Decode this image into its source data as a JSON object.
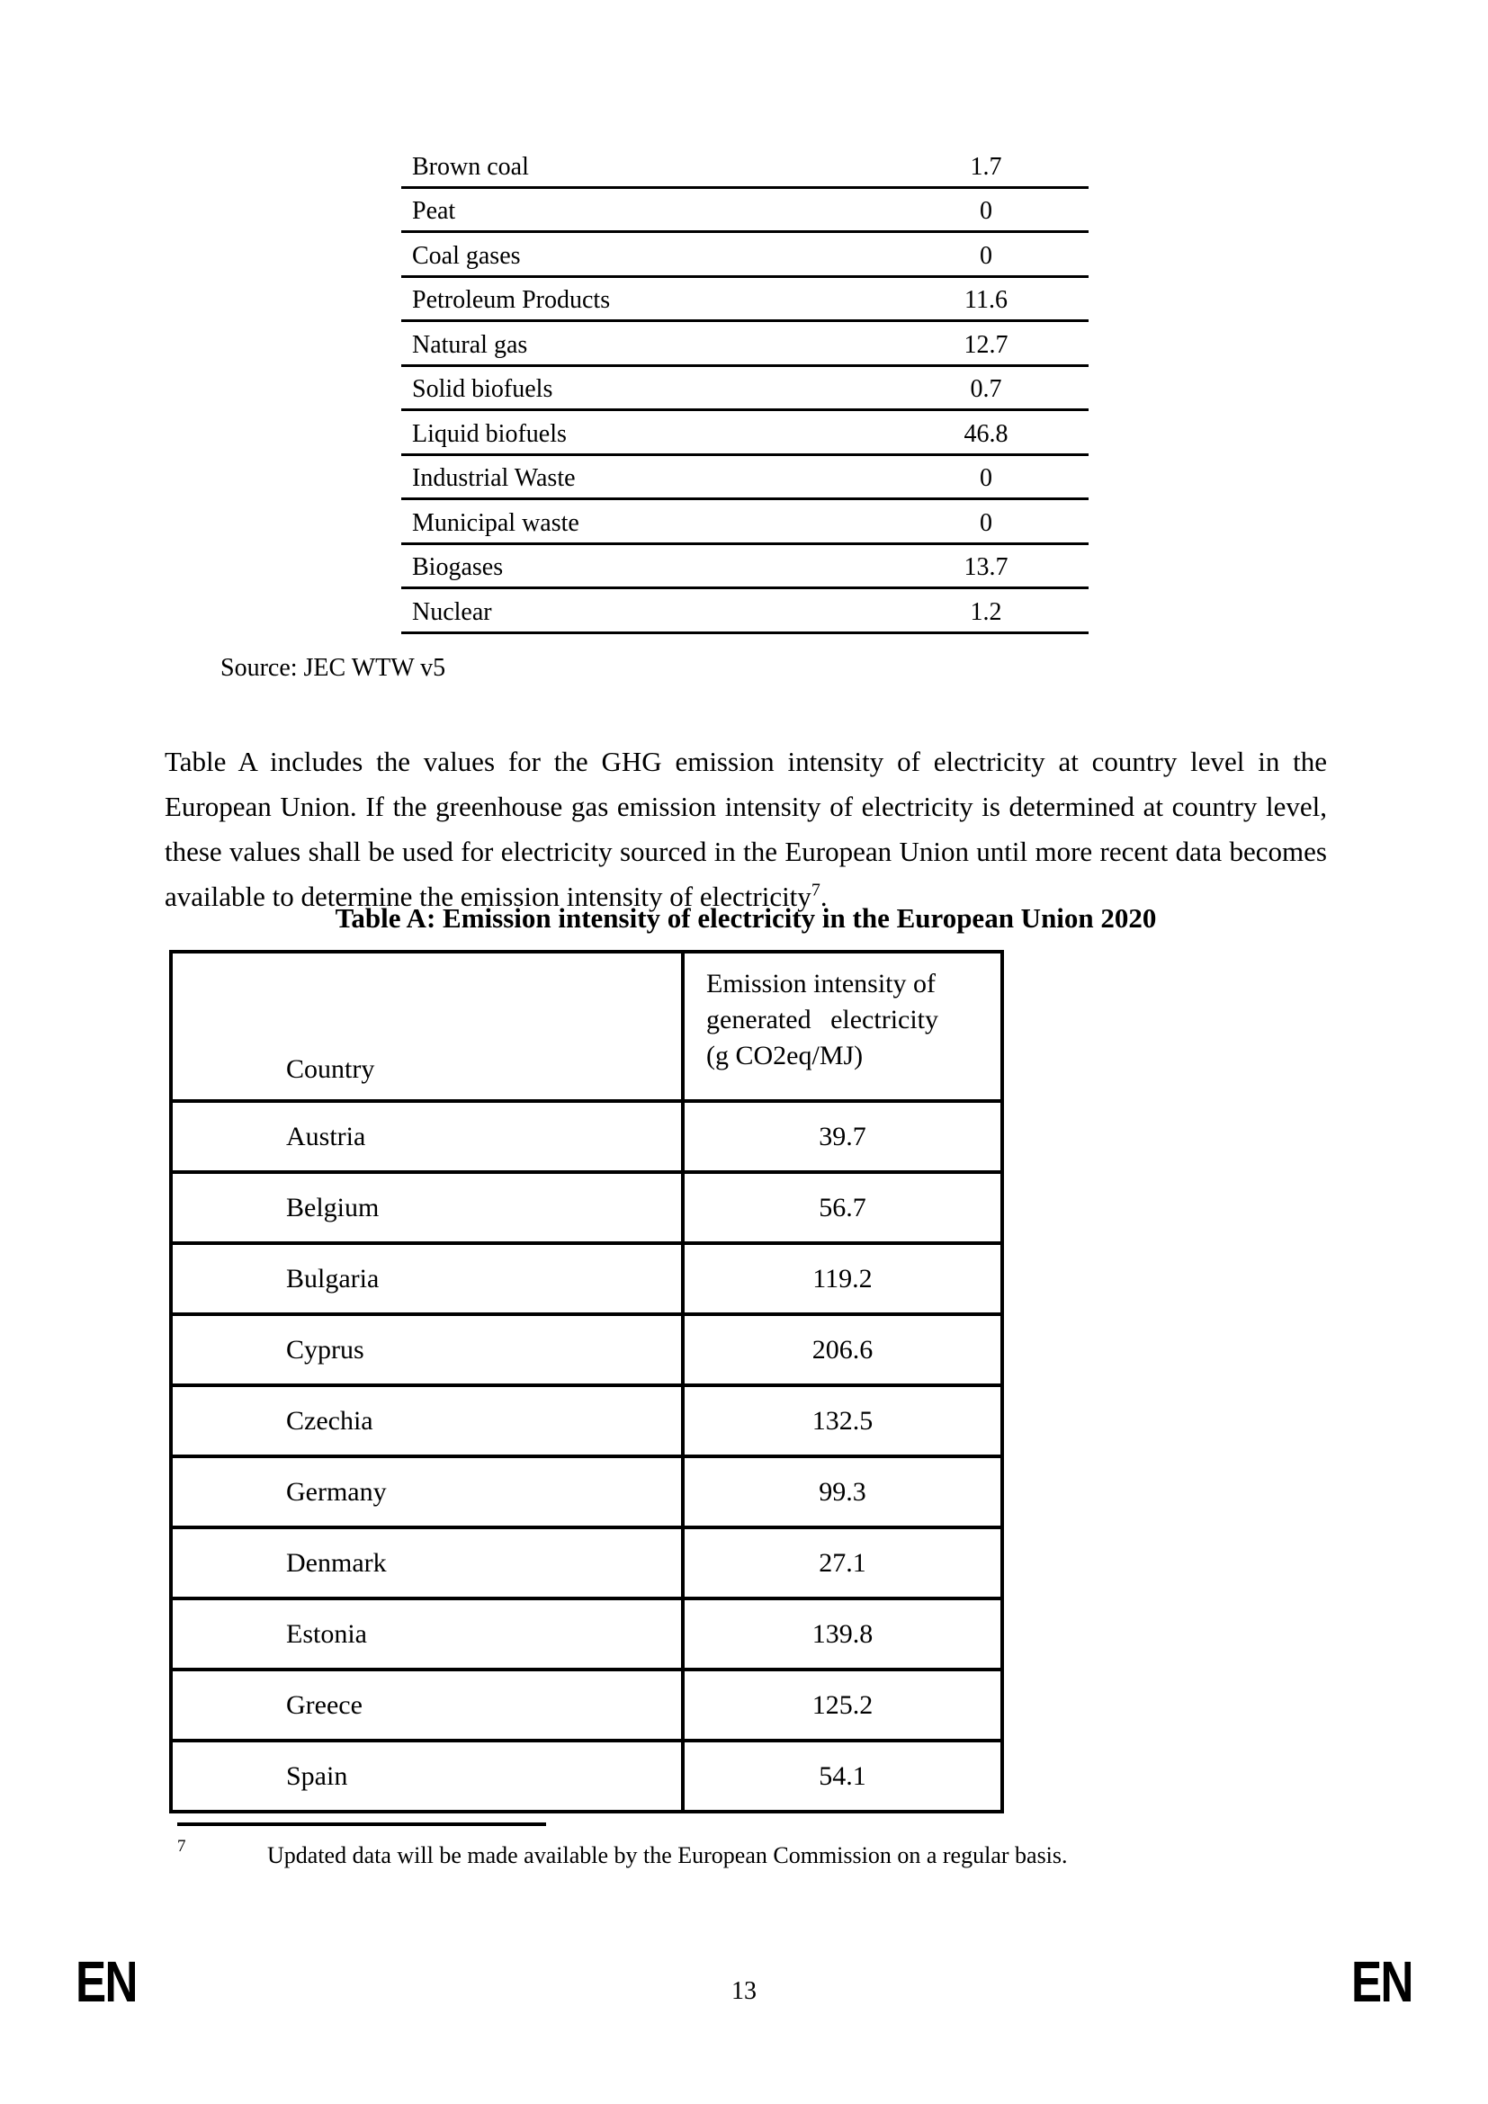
{
  "fuel_table": {
    "rows": [
      {
        "label": "Brown coal",
        "value": "1.7"
      },
      {
        "label": "Peat",
        "value": "0"
      },
      {
        "label": "Coal gases",
        "value": "0"
      },
      {
        "label": "Petroleum Products",
        "value": "11.6"
      },
      {
        "label": "Natural gas",
        "value": "12.7"
      },
      {
        "label": "Solid biofuels",
        "value": "0.7"
      },
      {
        "label": "Liquid biofuels",
        "value": "46.8"
      },
      {
        "label": "Industrial Waste",
        "value": "0"
      },
      {
        "label": "Municipal waste",
        "value": "0"
      },
      {
        "label": "Biogases",
        "value": "13.7"
      },
      {
        "label": "Nuclear",
        "value": "1.2"
      }
    ],
    "source": "Source: JEC WTW v5"
  },
  "paragraph": {
    "text": "Table A includes the values for the GHG emission intensity of electricity at country level in the European Union. If the greenhouse gas emission intensity of electricity is determined at country level, these values shall be used for electricity sourced in the European Union until more recent data becomes available to determine the emission intensity of electricity",
    "footnote_ref": "7",
    "after_ref": "."
  },
  "table_a": {
    "title": "Table A: Emission intensity of electricity in the European Union 2020",
    "header": {
      "col1": "Country",
      "col2_line1": "Emission intensity of",
      "col2_line2": "generated electricity",
      "col2_line3": "(g CO2eq/MJ)"
    },
    "rows": [
      {
        "country": "Austria",
        "value": "39.7"
      },
      {
        "country": "Belgium",
        "value": "56.7"
      },
      {
        "country": "Bulgaria",
        "value": "119.2"
      },
      {
        "country": "Cyprus",
        "value": "206.6"
      },
      {
        "country": "Czechia",
        "value": "132.5"
      },
      {
        "country": "Germany",
        "value": "99.3"
      },
      {
        "country": "Denmark",
        "value": "27.1"
      },
      {
        "country": "Estonia",
        "value": "139.8"
      },
      {
        "country": "Greece",
        "value": "125.2"
      },
      {
        "country": "Spain",
        "value": "54.1"
      }
    ]
  },
  "footnote": {
    "marker": "7",
    "text": "Updated data will be made available by the European Commission on a regular basis."
  },
  "footer": {
    "lang_left": "EN",
    "lang_right": "EN",
    "page_number": "13"
  }
}
